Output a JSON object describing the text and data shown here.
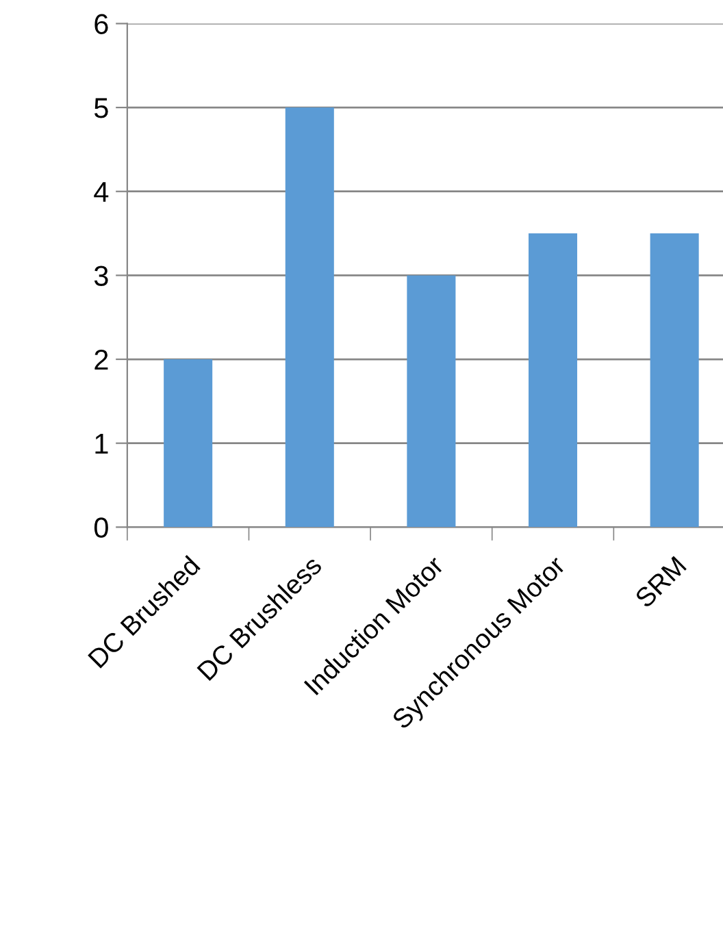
{
  "chart_data": {
    "type": "bar",
    "categories": [
      "DC Brushed",
      "DC Brushless",
      "Induction Motor",
      "Synchronous Motor",
      "SRM"
    ],
    "values": [
      2,
      5,
      3,
      3.5,
      3.5
    ],
    "color": "#5b9bd5",
    "ylim": [
      0,
      6
    ],
    "yticks": [
      0,
      1,
      2,
      3,
      4,
      5,
      6
    ],
    "grid": "y",
    "legend": false
  }
}
